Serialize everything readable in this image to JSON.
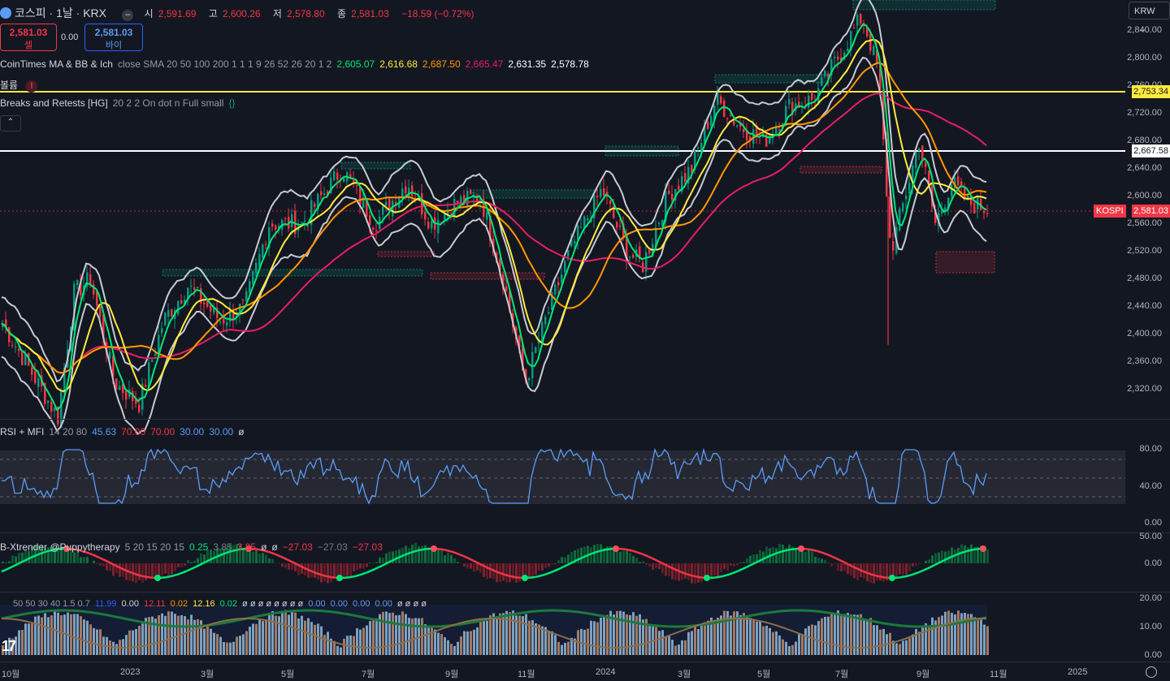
{
  "header": {
    "symbol": "코스피 · 1날 · KRX",
    "open_label": "시",
    "open": "2,591.69",
    "high_label": "고",
    "high": "2,600.26",
    "low_label": "저",
    "low": "2,578.80",
    "close_label": "종",
    "close": "2,581.03",
    "change": "−18.59 (−0.72%)"
  },
  "trade": {
    "sell_price": "2,581.03",
    "sell_label": "셀",
    "spread": "0.00",
    "buy_price": "2,581.03",
    "buy_label": "바이"
  },
  "currency": "KRW",
  "indicators": {
    "ma_name": "CoinTimes MA & BB & Ich",
    "ma_params": "close SMA 20 50 100 200 1 1 1 9 26 52 26 20 1 2",
    "ma_values": [
      {
        "v": "2,605.07",
        "color": "#00e676"
      },
      {
        "v": "2,616.68",
        "color": "#ffeb3b"
      },
      {
        "v": "2,687.50",
        "color": "#ff9800"
      },
      {
        "v": "2,665.47",
        "color": "#e91e63"
      },
      {
        "v": "2,631.35",
        "color": "#ffffff"
      },
      {
        "v": "2,578.78",
        "color": "#ffffff"
      }
    ],
    "volume_name": "볼륨",
    "breaks_name": "Breaks and Retests [HG]",
    "breaks_params": "20 2 2 On dot n Full small",
    "rsi_name": "RSI + MFI",
    "rsi_params": "14 20 80",
    "rsi_values": [
      {
        "v": "45.63",
        "color": "#5b9cf6"
      },
      {
        "v": "70.00",
        "color": "#f23645"
      },
      {
        "v": "70.00",
        "color": "#f23645"
      },
      {
        "v": "30.00",
        "color": "#5b9cf6"
      },
      {
        "v": "30.00",
        "color": "#5b9cf6"
      },
      {
        "v": "ø",
        "color": "#d1d4dc"
      }
    ],
    "xtrender_name": "B-Xtrender @Puppytherapy",
    "xtrender_params": "5 20 15 20 15",
    "xtrender_values": [
      {
        "v": "0.25",
        "color": "#00e676"
      },
      {
        "v": "3.85",
        "color": "#787b86"
      },
      {
        "v": "3.85",
        "color": "#f23645"
      },
      {
        "v": "ø",
        "color": "#d1d4dc"
      },
      {
        "v": "ø",
        "color": "#d1d4dc"
      },
      {
        "v": "−27.03",
        "color": "#f23645"
      },
      {
        "v": "−27.03",
        "color": "#787b86"
      },
      {
        "v": "−27.03",
        "color": "#f23645"
      }
    ],
    "bottom_params": "50 50 30 40 1.5 0.7",
    "bottom_values": [
      {
        "v": "11.99",
        "color": "#2962ff"
      },
      {
        "v": "0.00",
        "color": "#d1d4dc"
      },
      {
        "v": "12.11",
        "color": "#f23645"
      },
      {
        "v": "0.02",
        "color": "#ff9800"
      },
      {
        "v": "12.16",
        "color": "#ffeb3b"
      },
      {
        "v": "0.02",
        "color": "#00e676"
      },
      {
        "v": "ø ø ø ø ø ø ø ø",
        "color": "#d1d4dc"
      },
      {
        "v": "0.00",
        "color": "#5b9cf6"
      },
      {
        "v": "0.00",
        "color": "#5b9cf6"
      },
      {
        "v": "0.00",
        "color": "#5b9cf6"
      },
      {
        "v": "0.00",
        "color": "#5b9cf6"
      },
      {
        "v": "ø ø ø ø",
        "color": "#d1d4dc"
      }
    ]
  },
  "price_axis": [
    "2,840.00",
    "2,800.00",
    "2,760.00",
    "2,720.00",
    "2,680.00",
    "2,640.00",
    "2,600.00",
    "2,560.00",
    "2,520.00",
    "2,480.00",
    "2,440.00",
    "2,400.00",
    "2,360.00",
    "2,320.00"
  ],
  "price_tags": {
    "yellow_line": "2,753.34",
    "white_line": "2,667.58",
    "last_label": "KOSPI",
    "last_price": "2,581.03"
  },
  "rsi_axis": [
    "80.00",
    "40.00",
    "0.00"
  ],
  "xtr_axis": [
    "50.00",
    "0.00"
  ],
  "bottom_axis": [
    "20.00",
    "10.00",
    "0.00"
  ],
  "time_axis": [
    "10월",
    "2023",
    "3월",
    "5월",
    "7월",
    "9월",
    "11월",
    "2024",
    "3월",
    "5월",
    "7월",
    "9월",
    "11월",
    "2025"
  ],
  "colors": {
    "bg": "#131722",
    "up": "#089981",
    "down": "#f23645",
    "sma20": "#00e676",
    "sma50": "#ffeb3b",
    "sma100": "#ff9800",
    "sma200": "#e91e63",
    "bb": "#d1d4dc",
    "rsi": "#5b9cf6"
  }
}
